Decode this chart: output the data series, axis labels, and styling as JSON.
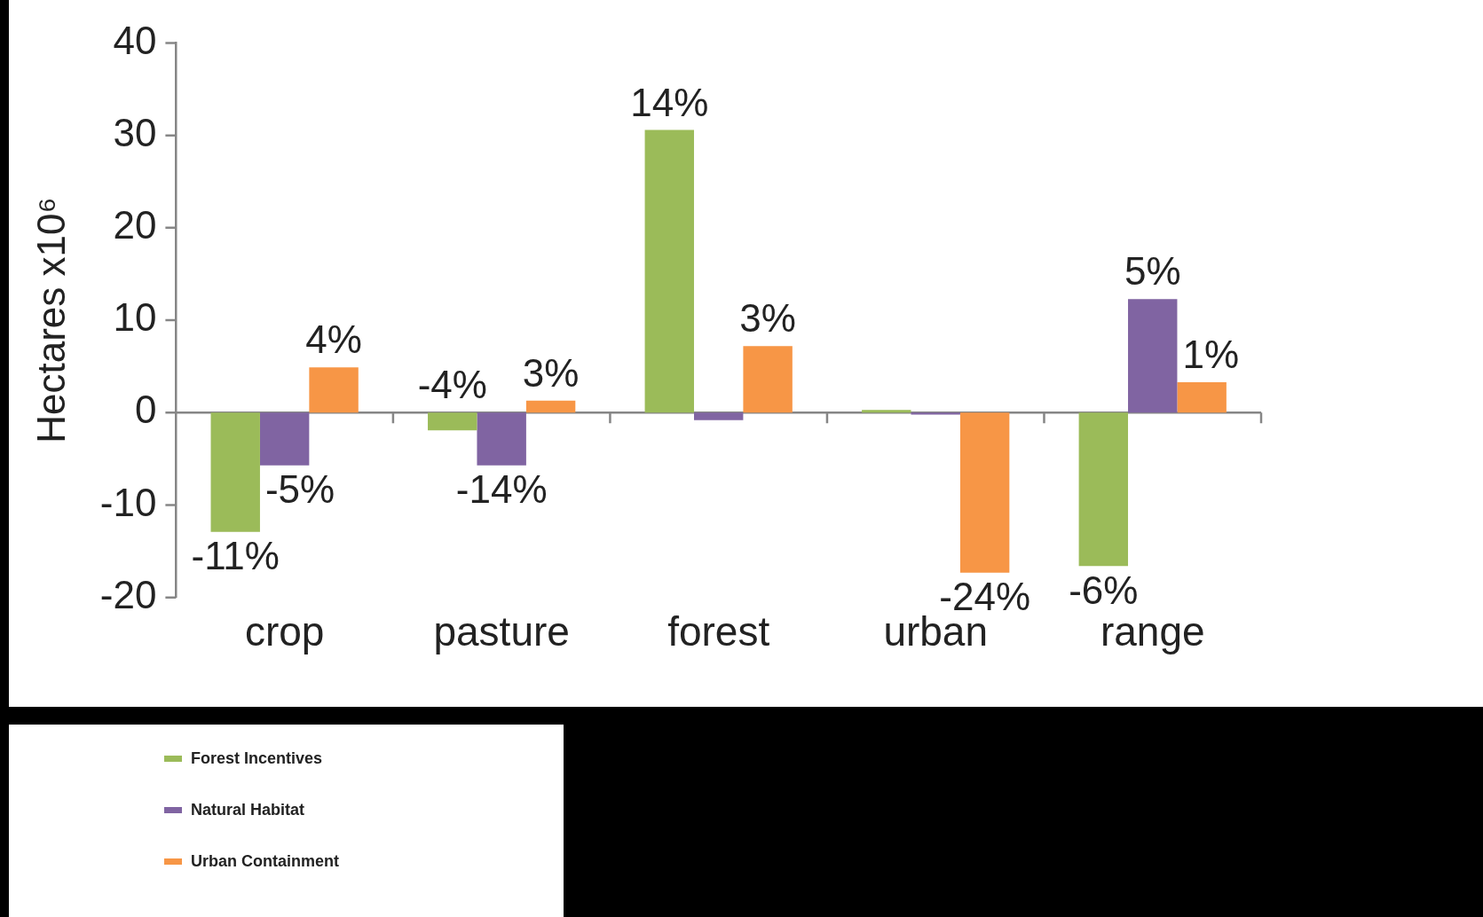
{
  "chart_data": {
    "type": "bar",
    "ylabel": "Hectares x10⁶",
    "categories": [
      "crop",
      "pasture",
      "forest",
      "urban",
      "range"
    ],
    "series": [
      {
        "name": "Forest Incentives",
        "color": "#9bbb59",
        "values": [
          -12.9,
          -1.9,
          30.6,
          0.3,
          -16.6
        ]
      },
      {
        "name": "Natural Habitat",
        "color": "#8064a2",
        "values": [
          -5.7,
          -5.7,
          -0.8,
          -0.2,
          12.3
        ]
      },
      {
        "name": "Urban Containment",
        "color": "#f79646",
        "values": [
          4.9,
          1.3,
          7.2,
          -17.3,
          3.3
        ]
      }
    ],
    "annotations": [
      "-11%",
      "-5%",
      "4%",
      "-4%",
      "-14%",
      "3%",
      "14%",
      "3%",
      "-24%",
      "-6%",
      "5%",
      "1%"
    ],
    "ylim": [
      -20,
      40
    ],
    "yticks": [
      -20,
      -10,
      0,
      10,
      20,
      30,
      40
    ],
    "legend": "bottom left"
  }
}
